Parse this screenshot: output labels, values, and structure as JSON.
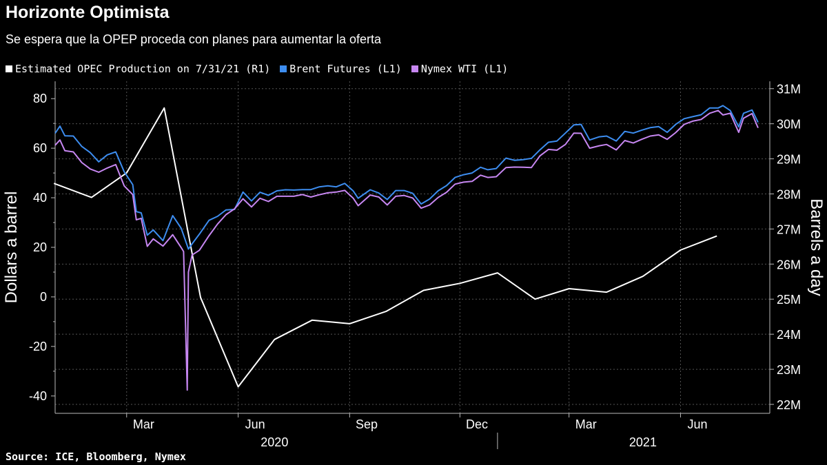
{
  "title": "Horizonte Optimista",
  "subtitle": "Se espera que la OPEP proceda con planes para aumentar la oferta",
  "source": "Source: ICE, Bloomberg, Nymex",
  "colors": {
    "opec": "#ffffff",
    "brent": "#3d8df0",
    "wti": "#c787f2",
    "grid": "#555555"
  },
  "chart_data": {
    "type": "line",
    "title": "Horizonte Optimista",
    "subtitle": "Se espera que la OPEP proceda con planes para aumentar la oferta",
    "ylabel_left": "Dollars a barrel",
    "ylabel_right": "Barrels a day",
    "ylim_left": [
      -47,
      87
    ],
    "ylim_right": [
      22000000,
      31250000
    ],
    "left_ticks": [
      "80",
      "60",
      "40",
      "20",
      "0",
      "-20",
      "-40"
    ],
    "left_tick_values": [
      80,
      60,
      40,
      20,
      0,
      -20,
      -40
    ],
    "right_ticks": [
      "31M",
      "30M",
      "29M",
      "28M",
      "27M",
      "26M",
      "25M",
      "24M",
      "23M",
      "22M"
    ],
    "right_tick_values": [
      31000000,
      30000000,
      29000000,
      28000000,
      27000000,
      26000000,
      25000000,
      24000000,
      23000000,
      22000000
    ],
    "x_range": [
      "2020-01-02",
      "2021-08-04"
    ],
    "x_month_labels": [
      {
        "label": "Mar",
        "date": "2020-03-15"
      },
      {
        "label": "Jun",
        "date": "2020-06-15"
      },
      {
        "label": "Sep",
        "date": "2020-09-15"
      },
      {
        "label": "Dec",
        "date": "2020-12-15"
      },
      {
        "label": "Mar",
        "date": "2021-03-15"
      },
      {
        "label": "Jun",
        "date": "2021-06-15"
      }
    ],
    "x_year_labels": [
      {
        "label": "2020",
        "date": "2020-07-01"
      },
      {
        "label": "2021",
        "date": "2021-05-01"
      }
    ],
    "year_divider": "2021-01-01",
    "gridline_dates": [
      "2020-03-01",
      "2020-06-01",
      "2020-09-01",
      "2020-12-01",
      "2021-03-01",
      "2021-06-01"
    ],
    "legend": "top-left",
    "series": [
      {
        "name": "Estimated OPEC Production on 7/31/21 (R1)",
        "axis": "right",
        "color": "#ffffff",
        "points": [
          [
            "2020-01-01",
            28300000
          ],
          [
            "2020-02-01",
            27900000
          ],
          [
            "2020-03-01",
            28600000
          ],
          [
            "2020-04-01",
            30450000
          ],
          [
            "2020-05-01",
            25050000
          ],
          [
            "2020-06-01",
            22500000
          ],
          [
            "2020-07-01",
            23850000
          ],
          [
            "2020-08-01",
            24400000
          ],
          [
            "2020-09-01",
            24300000
          ],
          [
            "2020-10-01",
            24650000
          ],
          [
            "2020-11-01",
            25250000
          ],
          [
            "2020-12-01",
            25450000
          ],
          [
            "2021-01-01",
            25750000
          ],
          [
            "2021-02-01",
            25000000
          ],
          [
            "2021-03-01",
            25300000
          ],
          [
            "2021-04-01",
            25200000
          ],
          [
            "2021-05-01",
            25650000
          ],
          [
            "2021-06-01",
            26400000
          ],
          [
            "2021-07-01",
            26800000
          ]
        ]
      },
      {
        "name": "Brent Futures (L1)",
        "axis": "left",
        "color": "#3d8df0",
        "points": [
          [
            "2020-01-02",
            66
          ],
          [
            "2020-01-06",
            68.9
          ],
          [
            "2020-01-10",
            65
          ],
          [
            "2020-01-17",
            64.9
          ],
          [
            "2020-01-24",
            60.7
          ],
          [
            "2020-01-31",
            58.2
          ],
          [
            "2020-02-07",
            54.5
          ],
          [
            "2020-02-14",
            57.3
          ],
          [
            "2020-02-21",
            58.5
          ],
          [
            "2020-02-28",
            50.5
          ],
          [
            "2020-03-06",
            45.3
          ],
          [
            "2020-03-09",
            34.4
          ],
          [
            "2020-03-13",
            33.9
          ],
          [
            "2020-03-18",
            24.9
          ],
          [
            "2020-03-23",
            27
          ],
          [
            "2020-03-31",
            22.7
          ],
          [
            "2020-04-08",
            32.8
          ],
          [
            "2020-04-15",
            27.7
          ],
          [
            "2020-04-21",
            19.3
          ],
          [
            "2020-04-24",
            21.4
          ],
          [
            "2020-04-30",
            25.3
          ],
          [
            "2020-05-08",
            30.9
          ],
          [
            "2020-05-15",
            32.5
          ],
          [
            "2020-05-22",
            35.1
          ],
          [
            "2020-05-29",
            35.3
          ],
          [
            "2020-06-05",
            42.3
          ],
          [
            "2020-06-12",
            38.7
          ],
          [
            "2020-06-19",
            42.2
          ],
          [
            "2020-06-26",
            41
          ],
          [
            "2020-07-03",
            42.8
          ],
          [
            "2020-07-10",
            43.2
          ],
          [
            "2020-07-17",
            43.1
          ],
          [
            "2020-07-24",
            43.3
          ],
          [
            "2020-07-31",
            43.3
          ],
          [
            "2020-08-07",
            44.4
          ],
          [
            "2020-08-14",
            44.8
          ],
          [
            "2020-08-21",
            44.4
          ],
          [
            "2020-08-28",
            45.8
          ],
          [
            "2020-09-04",
            42.7
          ],
          [
            "2020-09-08",
            39.8
          ],
          [
            "2020-09-18",
            43.2
          ],
          [
            "2020-09-25",
            41.9
          ],
          [
            "2020-10-02",
            39.3
          ],
          [
            "2020-10-09",
            42.9
          ],
          [
            "2020-10-16",
            42.9
          ],
          [
            "2020-10-23",
            41.8
          ],
          [
            "2020-10-30",
            37.5
          ],
          [
            "2020-11-06",
            39.5
          ],
          [
            "2020-11-13",
            42.8
          ],
          [
            "2020-11-20",
            44.9
          ],
          [
            "2020-11-27",
            48.2
          ],
          [
            "2020-12-04",
            49.3
          ],
          [
            "2020-12-11",
            50
          ],
          [
            "2020-12-18",
            52.3
          ],
          [
            "2020-12-24",
            51.3
          ],
          [
            "2020-12-31",
            51.8
          ],
          [
            "2021-01-08",
            55.99
          ],
          [
            "2021-01-15",
            55.1
          ],
          [
            "2021-01-22",
            55.4
          ],
          [
            "2021-01-29",
            55.9
          ],
          [
            "2021-02-05",
            59.3
          ],
          [
            "2021-02-12",
            62.4
          ],
          [
            "2021-02-19",
            62.9
          ],
          [
            "2021-02-26",
            66.1
          ],
          [
            "2021-03-05",
            69.4
          ],
          [
            "2021-03-11",
            69.6
          ],
          [
            "2021-03-18",
            63.3
          ],
          [
            "2021-03-26",
            64.6
          ],
          [
            "2021-04-01",
            64.9
          ],
          [
            "2021-04-09",
            62.9
          ],
          [
            "2021-04-16",
            66.8
          ],
          [
            "2021-04-23",
            66.1
          ],
          [
            "2021-04-30",
            67.3
          ],
          [
            "2021-05-07",
            68.3
          ],
          [
            "2021-05-14",
            68.7
          ],
          [
            "2021-05-21",
            66.4
          ],
          [
            "2021-05-28",
            69.6
          ],
          [
            "2021-06-04",
            71.9
          ],
          [
            "2021-06-11",
            72.7
          ],
          [
            "2021-06-18",
            73.5
          ],
          [
            "2021-06-25",
            76.2
          ],
          [
            "2021-07-02",
            76.2
          ],
          [
            "2021-07-06",
            77.2
          ],
          [
            "2021-07-12",
            75.2
          ],
          [
            "2021-07-19",
            68.6
          ],
          [
            "2021-07-23",
            74.1
          ],
          [
            "2021-07-30",
            75.4
          ],
          [
            "2021-08-04",
            70.4
          ]
        ]
      },
      {
        "name": "Nymex WTI (L1)",
        "axis": "left",
        "color": "#c787f2",
        "points": [
          [
            "2020-01-02",
            61.2
          ],
          [
            "2020-01-06",
            63.3
          ],
          [
            "2020-01-10",
            59
          ],
          [
            "2020-01-17",
            58.5
          ],
          [
            "2020-01-24",
            54.2
          ],
          [
            "2020-01-31",
            51.6
          ],
          [
            "2020-02-07",
            50.3
          ],
          [
            "2020-02-14",
            52
          ],
          [
            "2020-02-21",
            53.4
          ],
          [
            "2020-02-28",
            44.8
          ],
          [
            "2020-03-06",
            41.3
          ],
          [
            "2020-03-09",
            31.1
          ],
          [
            "2020-03-13",
            31.7
          ],
          [
            "2020-03-18",
            20.4
          ],
          [
            "2020-03-23",
            23.4
          ],
          [
            "2020-03-31",
            20.5
          ],
          [
            "2020-04-08",
            25.1
          ],
          [
            "2020-04-15",
            19.9
          ],
          [
            "2020-04-17",
            18.3
          ],
          [
            "2020-04-20",
            -37.6
          ],
          [
            "2020-04-21",
            10
          ],
          [
            "2020-04-24",
            16.9
          ],
          [
            "2020-04-30",
            18.8
          ],
          [
            "2020-05-08",
            24.7
          ],
          [
            "2020-05-15",
            29.4
          ],
          [
            "2020-05-22",
            33.2
          ],
          [
            "2020-05-29",
            35.5
          ],
          [
            "2020-06-05",
            39.6
          ],
          [
            "2020-06-12",
            36.3
          ],
          [
            "2020-06-19",
            39.8
          ],
          [
            "2020-06-26",
            38.5
          ],
          [
            "2020-07-03",
            40.6
          ],
          [
            "2020-07-10",
            40.6
          ],
          [
            "2020-07-17",
            40.6
          ],
          [
            "2020-07-24",
            41.3
          ],
          [
            "2020-07-31",
            40.3
          ],
          [
            "2020-08-07",
            41.2
          ],
          [
            "2020-08-14",
            42
          ],
          [
            "2020-08-21",
            42.3
          ],
          [
            "2020-08-28",
            42.97
          ],
          [
            "2020-09-04",
            39.8
          ],
          [
            "2020-09-08",
            36.8
          ],
          [
            "2020-09-18",
            41.1
          ],
          [
            "2020-09-25",
            40.3
          ],
          [
            "2020-10-02",
            37.1
          ],
          [
            "2020-10-09",
            40.6
          ],
          [
            "2020-10-16",
            40.9
          ],
          [
            "2020-10-23",
            39.9
          ],
          [
            "2020-10-30",
            35.8
          ],
          [
            "2020-11-06",
            37.1
          ],
          [
            "2020-11-13",
            40.1
          ],
          [
            "2020-11-20",
            42.2
          ],
          [
            "2020-11-27",
            45.5
          ],
          [
            "2020-12-04",
            46.3
          ],
          [
            "2020-12-11",
            46.6
          ],
          [
            "2020-12-18",
            49.1
          ],
          [
            "2020-12-24",
            48.2
          ],
          [
            "2020-12-31",
            48.5
          ],
          [
            "2021-01-08",
            52.2
          ],
          [
            "2021-01-15",
            52.4
          ],
          [
            "2021-01-22",
            52.3
          ],
          [
            "2021-01-29",
            52.2
          ],
          [
            "2021-02-05",
            56.9
          ],
          [
            "2021-02-12",
            59.5
          ],
          [
            "2021-02-19",
            59.2
          ],
          [
            "2021-02-26",
            61.5
          ],
          [
            "2021-03-05",
            66.1
          ],
          [
            "2021-03-11",
            66
          ],
          [
            "2021-03-18",
            60
          ],
          [
            "2021-03-26",
            60.97
          ],
          [
            "2021-04-01",
            61.5
          ],
          [
            "2021-04-09",
            59.3
          ],
          [
            "2021-04-16",
            63.1
          ],
          [
            "2021-04-23",
            62.1
          ],
          [
            "2021-04-30",
            63.6
          ],
          [
            "2021-05-07",
            64.9
          ],
          [
            "2021-05-14",
            65.4
          ],
          [
            "2021-05-21",
            63.6
          ],
          [
            "2021-05-28",
            66.3
          ],
          [
            "2021-06-04",
            69.6
          ],
          [
            "2021-06-11",
            70.9
          ],
          [
            "2021-06-18",
            71.6
          ],
          [
            "2021-06-25",
            74.1
          ],
          [
            "2021-07-02",
            75.2
          ],
          [
            "2021-07-06",
            73.4
          ],
          [
            "2021-07-12",
            74.1
          ],
          [
            "2021-07-19",
            66.4
          ],
          [
            "2021-07-23",
            72.1
          ],
          [
            "2021-07-30",
            73.95
          ],
          [
            "2021-08-04",
            68.2
          ]
        ]
      }
    ]
  }
}
